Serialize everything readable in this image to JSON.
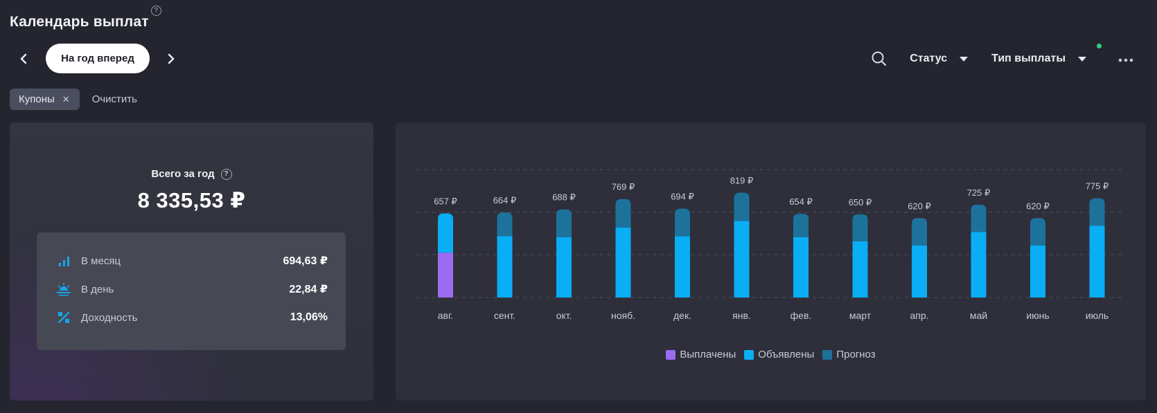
{
  "header": {
    "title": "Календарь выплат",
    "help_glyph": "?"
  },
  "nav": {
    "period_label": "На год вперед",
    "status_label": "Статус",
    "payout_type_label": "Тип выплаты"
  },
  "filters": {
    "chip_label": "Купоны",
    "chip_close": "✕",
    "clear_label": "Очистить"
  },
  "summary": {
    "total_label": "Всего за год",
    "total_value": "8 335,53 ₽",
    "stats": [
      {
        "label": "В месяц",
        "value": "694,63 ₽",
        "icon": "bar-chart-icon"
      },
      {
        "label": "В день",
        "value": "22,84 ₽",
        "icon": "sunrise-icon"
      },
      {
        "label": "Доходность",
        "value": "13,06%",
        "icon": "percent-icon"
      }
    ]
  },
  "colors": {
    "paid": "#9b6cf0",
    "announced": "#09aef4",
    "forecast": "#1d729c",
    "accent": "#ffffff",
    "status_dot": "#35d07f"
  },
  "chart_data": {
    "type": "bar",
    "stacked": true,
    "categories": [
      "авг.",
      "сент.",
      "окт.",
      "нояб.",
      "дек.",
      "янв.",
      "фев.",
      "март",
      "апр.",
      "май",
      "июнь",
      "июль"
    ],
    "totals_labels": [
      "657 ₽",
      "664 ₽",
      "688 ₽",
      "769 ₽",
      "694 ₽",
      "819 ₽",
      "654 ₽",
      "650 ₽",
      "620 ₽",
      "725 ₽",
      "620 ₽",
      "775 ₽"
    ],
    "totals": [
      657,
      664,
      688,
      769,
      694,
      819,
      654,
      650,
      620,
      725,
      620,
      775
    ],
    "series": [
      {
        "name": "Выплачены",
        "values": [
          350,
          0,
          0,
          0,
          0,
          0,
          0,
          0,
          0,
          0,
          0,
          0
        ]
      },
      {
        "name": "Объявлены",
        "values": [
          307,
          479,
          471,
          547,
          478,
          597,
          472,
          439,
          407,
          511,
          406,
          561
        ]
      },
      {
        "name": "Прогноз",
        "values": [
          0,
          185,
          217,
          222,
          216,
          222,
          182,
          211,
          213,
          214,
          214,
          214
        ]
      }
    ],
    "ylim": [
      0,
      1000
    ],
    "grid": true,
    "legend_position": "bottom"
  }
}
